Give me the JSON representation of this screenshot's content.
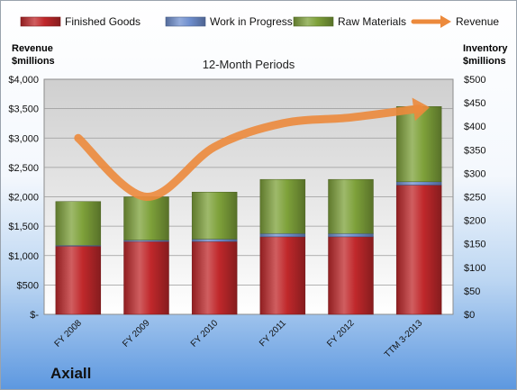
{
  "company": "Axiall",
  "chart_data": {
    "type": "bar",
    "stacked": true,
    "title": "12-Month Periods",
    "left_axis_label": [
      "Revenue",
      "$millions"
    ],
    "right_axis_label": [
      "Inventory",
      "$millions"
    ],
    "categories": [
      "FY 2008",
      "FY 2009",
      "FY 2010",
      "FY 2011",
      "FY 2012",
      "TTM 3-2013"
    ],
    "series": [
      {
        "name": "Finished Goods",
        "axis": "right",
        "color": "#c0282b",
        "values": [
          145,
          155,
          155,
          165,
          165,
          275
        ]
      },
      {
        "name": "Work in Progress",
        "axis": "right",
        "color": "#6f8fcf",
        "values": [
          2,
          3,
          5,
          7,
          7,
          7
        ]
      },
      {
        "name": "Raw Materials",
        "axis": "right",
        "color": "#7ea13a",
        "values": [
          93,
          92,
          100,
          115,
          115,
          160
        ]
      }
    ],
    "line": {
      "name": "Revenue",
      "axis": "left",
      "color": "#ec8a3c",
      "values": [
        3000,
        2000,
        2850,
        3250,
        3350,
        3500
      ]
    },
    "left_axis": {
      "min": 0,
      "max": 4000,
      "ticks": [
        "$-",
        "$500",
        "$1,000",
        "$1,500",
        "$2,000",
        "$2,500",
        "$3,000",
        "$3,500",
        "$4,000"
      ]
    },
    "right_axis": {
      "min": 0,
      "max": 500,
      "ticks": [
        "$0",
        "$50",
        "$100",
        "$150",
        "$200",
        "$250",
        "$300",
        "$350",
        "$400",
        "$450",
        "$500"
      ]
    },
    "legend_position": "top"
  }
}
